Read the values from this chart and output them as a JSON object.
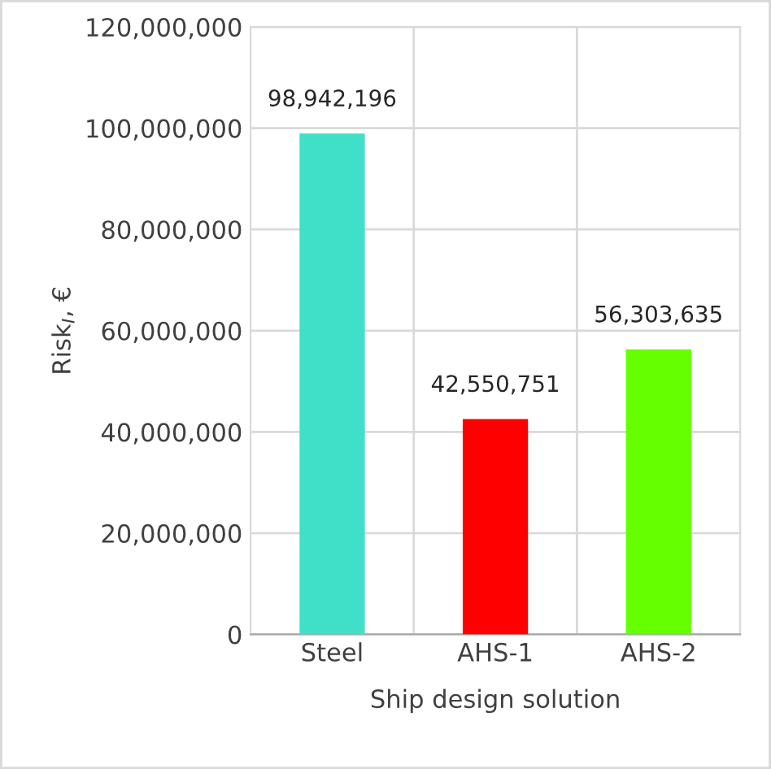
{
  "chart_data": {
    "type": "bar",
    "xlabel": "Ship design solution",
    "ylabel": "Risk$_{I}$, €",
    "categories": [
      "Steel",
      "AHS-1",
      "AHS-2"
    ],
    "values": [
      98942196,
      42550751,
      56303635
    ],
    "colors": [
      "#40e0c8",
      "#ff0000",
      "#66ff00"
    ],
    "ylim": [
      0,
      120000000
    ],
    "yticks": [
      {
        "value": 0,
        "label": "0"
      },
      {
        "value": 20000000,
        "label": "20,000,000"
      },
      {
        "value": 40000000,
        "label": "40,000,000"
      },
      {
        "value": 60000000,
        "label": "60,000,000"
      },
      {
        "value": 80000000,
        "label": "80,000,000"
      },
      {
        "value": 100000000,
        "label": "100,000,000"
      },
      {
        "value": 120000000,
        "label": "120,000,000"
      }
    ],
    "value_labels": [
      "98,942,196",
      "42,550,751",
      "56,303,635"
    ],
    "grid": true
  }
}
